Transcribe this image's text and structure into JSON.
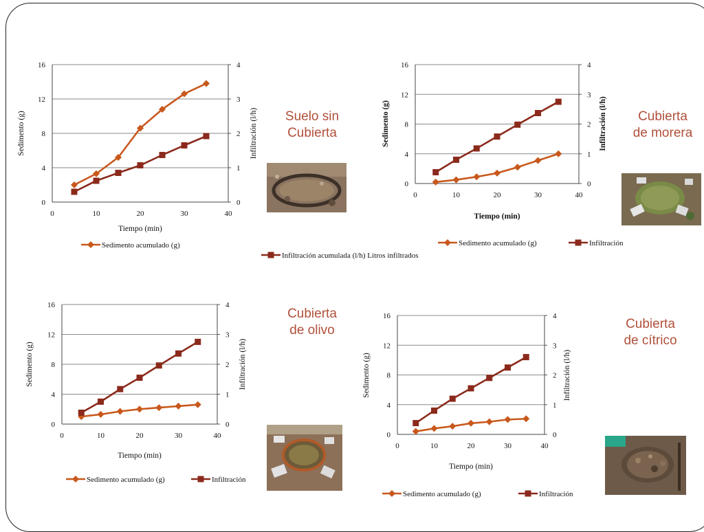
{
  "chart_data": [
    {
      "type": "line",
      "caption": [
        "Suelo sin",
        "Cubierta"
      ],
      "xlabel": "Tiempo (min)",
      "ylabel": "Sedimento (g)",
      "y2label": "Infiltración (l/h)",
      "xlim": [
        0,
        40
      ],
      "xticks": [
        0,
        10,
        20,
        30,
        40
      ],
      "ylim": [
        0,
        16
      ],
      "yticks": [
        0,
        4,
        8,
        12,
        16
      ],
      "y2lim": [
        0,
        4
      ],
      "y2ticks": [
        0,
        1,
        2,
        3,
        4
      ],
      "x": [
        5,
        10,
        15,
        20,
        25,
        30,
        35
      ],
      "series": [
        {
          "name": "Sedimento acumulado  (g)",
          "axis": "left",
          "marker": "diamond",
          "color": "#c8581c",
          "values": [
            2.0,
            3.3,
            5.2,
            8.6,
            10.8,
            12.6,
            13.8
          ]
        },
        {
          "name": "Infiltración acumulada (l/h) Litros infiltrados",
          "axis": "right",
          "marker": "square",
          "color": "#8b2a1c",
          "values": [
            0.3,
            0.62,
            0.85,
            1.07,
            1.37,
            1.65,
            1.92
          ]
        }
      ],
      "legend_layout": "stacked-bottom",
      "photo": "bare-soil-ring-photo"
    },
    {
      "type": "line",
      "caption": [
        "Cubierta",
        "de morera"
      ],
      "xlabel": "Tiempo (min)",
      "ylabel": "Sedimento (g)",
      "y2label": "Infiltración (l/h)",
      "xlim": [
        0,
        40
      ],
      "xticks": [
        0,
        10,
        20,
        30,
        40
      ],
      "ylim": [
        0,
        16
      ],
      "yticks": [
        0,
        4,
        8,
        12,
        16
      ],
      "y2lim": [
        0,
        4
      ],
      "y2ticks": [
        0,
        1,
        2,
        3,
        4
      ],
      "x": [
        5,
        10,
        15,
        20,
        25,
        30,
        35
      ],
      "series": [
        {
          "name": "Sedimento acumulado  (g)",
          "axis": "left",
          "marker": "diamond",
          "color": "#c8581c",
          "values": [
            0.2,
            0.5,
            0.9,
            1.4,
            2.2,
            3.1,
            4.0
          ]
        },
        {
          "name": "Infiltración",
          "axis": "right",
          "marker": "square",
          "color": "#8b2a1c",
          "values": [
            0.38,
            0.8,
            1.18,
            1.58,
            1.98,
            2.37,
            2.75
          ]
        }
      ],
      "legend_layout": "inline-bottom",
      "photo": "mulberry-cover-photo"
    },
    {
      "type": "line",
      "caption": [
        "Cubierta",
        "de olivo"
      ],
      "xlabel": "Tiempo (min)",
      "ylabel": "Sedimento (g)",
      "y2label": "Infiltración (l/h)",
      "xlim": [
        0,
        40
      ],
      "xticks": [
        0,
        10,
        20,
        30,
        40
      ],
      "ylim": [
        0,
        16
      ],
      "yticks": [
        0,
        4,
        8,
        12,
        16
      ],
      "y2lim": [
        0,
        4
      ],
      "y2ticks": [
        0,
        1,
        2,
        3,
        4
      ],
      "x": [
        5,
        10,
        15,
        20,
        25,
        30,
        35
      ],
      "series": [
        {
          "name": "Sedimento acumulado  (g)",
          "axis": "left",
          "marker": "diamond",
          "color": "#c8581c",
          "values": [
            1.0,
            1.3,
            1.7,
            2.0,
            2.2,
            2.4,
            2.6
          ]
        },
        {
          "name": "Infiltración",
          "axis": "right",
          "marker": "square",
          "color": "#8b2a1c",
          "values": [
            0.38,
            0.75,
            1.17,
            1.55,
            1.96,
            2.36,
            2.75
          ]
        }
      ],
      "legend_layout": "inline-bottom",
      "photo": "olive-cover-photo"
    },
    {
      "type": "line",
      "caption": [
        "Cubierta",
        "de cítrico"
      ],
      "xlabel": "Tiempo (min)",
      "ylabel": "Sedimento (g)",
      "y2label": "Infiltración (l/h)",
      "xlim": [
        0,
        40
      ],
      "xticks": [
        0,
        10,
        20,
        30,
        40
      ],
      "ylim": [
        0,
        16
      ],
      "yticks": [
        0,
        4,
        8,
        12,
        16
      ],
      "y2lim": [
        0,
        4
      ],
      "y2ticks": [
        0,
        1,
        2,
        3,
        4
      ],
      "x": [
        5,
        10,
        15,
        20,
        25,
        30,
        35
      ],
      "series": [
        {
          "name": "Sedimento acumulado  (g)",
          "axis": "left",
          "marker": "diamond",
          "color": "#c8581c",
          "values": [
            0.4,
            0.8,
            1.1,
            1.5,
            1.7,
            2.0,
            2.1
          ]
        },
        {
          "name": "Infiltración",
          "axis": "right",
          "marker": "square",
          "color": "#8b2a1c",
          "values": [
            0.38,
            0.8,
            1.2,
            1.55,
            1.9,
            2.25,
            2.6
          ]
        }
      ],
      "legend_layout": "inline-bottom",
      "photo": "citrus-cover-photo"
    }
  ]
}
